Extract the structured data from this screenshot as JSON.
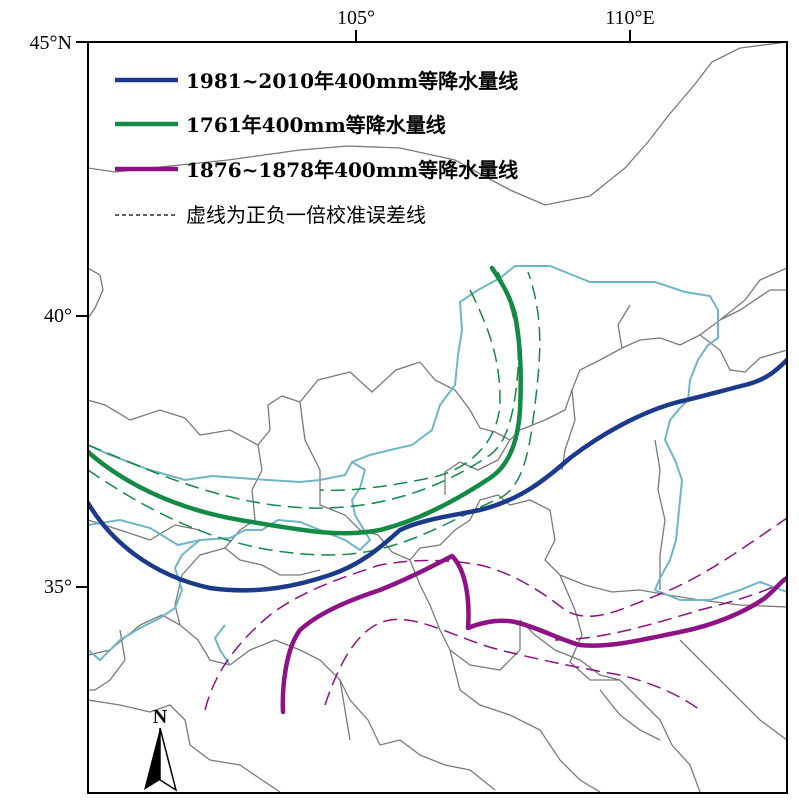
{
  "map": {
    "axes": {
      "top_labels": [
        "105°",
        "110°E"
      ],
      "left_labels": [
        "45°N",
        "40°",
        "35°"
      ]
    },
    "legend": [
      {
        "label": "1981~2010年400mm等降水量线",
        "color": "#1b3a8c",
        "style": "solid"
      },
      {
        "label": "1761年400mm等降水量线",
        "color": "#138a45",
        "style": "solid"
      },
      {
        "label": "1876~1878年400mm等降水量线",
        "color": "#8e1185",
        "style": "solid"
      },
      {
        "label": "虚线为正负一倍校准误差线",
        "color": "#000000",
        "style": "dashed"
      }
    ],
    "north_arrow": {
      "label": "N",
      "icon": "north-arrow-icon"
    },
    "colors": {
      "boundary_gray": "#7a7a7a",
      "boundary_cyan": "#6fb5c8",
      "line_blue": "#1b3a8c",
      "line_green": "#138a45",
      "line_purple": "#8e1185"
    }
  }
}
